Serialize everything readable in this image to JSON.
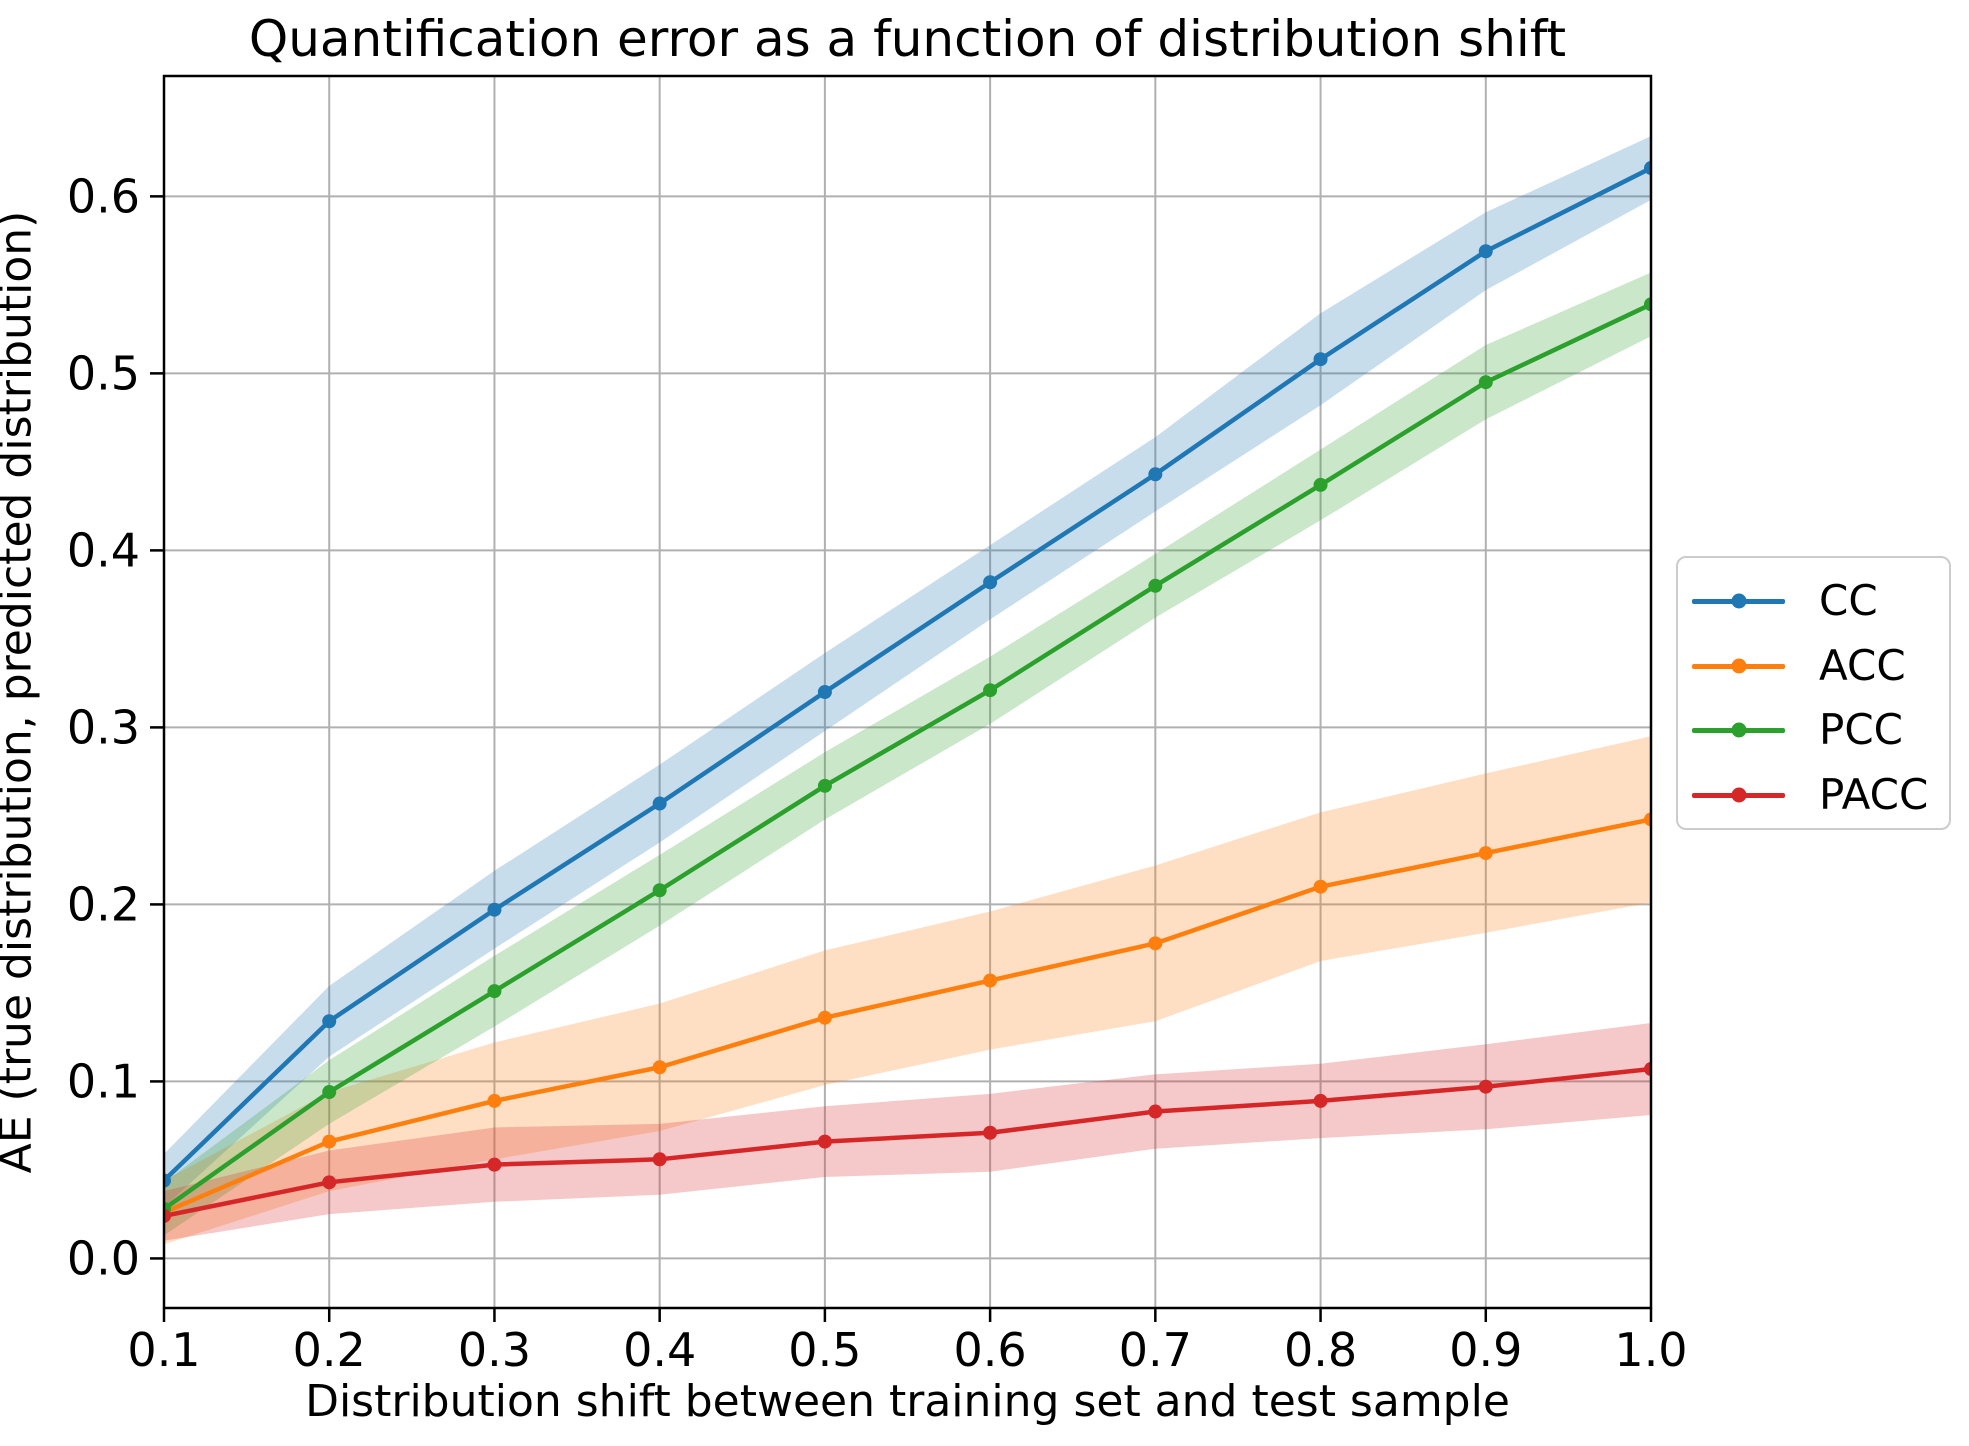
{
  "chart_data": {
    "type": "line",
    "title": "Quantification error as a function of distribution shift",
    "xlabel": "Distribution shift between training set and test sample",
    "ylabel": "AE (true distribution, predicted distribution)",
    "x": [
      0.1,
      0.2,
      0.3,
      0.4,
      0.5,
      0.6,
      0.7,
      0.8,
      0.9,
      1.0
    ],
    "xtick_labels": [
      "0.1",
      "0.2",
      "0.3",
      "0.4",
      "0.5",
      "0.6",
      "0.7",
      "0.8",
      "0.9",
      "1.0"
    ],
    "yticks": [
      0.0,
      0.1,
      0.2,
      0.3,
      0.4,
      0.5,
      0.6
    ],
    "ytick_labels": [
      "0.0",
      "0.1",
      "0.2",
      "0.3",
      "0.4",
      "0.5",
      "0.6"
    ],
    "xlim": [
      0.1,
      1.0
    ],
    "ylim": [
      -0.028,
      0.668
    ],
    "grid": true,
    "legend_position": "right of axes, vertically centered",
    "band_alpha": 0.25,
    "series": [
      {
        "name": "CC",
        "color": "#1f77b4",
        "values": [
          0.044,
          0.134,
          0.197,
          0.257,
          0.32,
          0.382,
          0.443,
          0.508,
          0.569,
          0.616
        ],
        "band_halfwidth": [
          0.015,
          0.02,
          0.022,
          0.022,
          0.022,
          0.021,
          0.021,
          0.026,
          0.022,
          0.018
        ]
      },
      {
        "name": "ACC",
        "color": "#ff7f0e",
        "values": [
          0.026,
          0.066,
          0.089,
          0.108,
          0.136,
          0.157,
          0.178,
          0.21,
          0.229,
          0.248
        ],
        "band_halfwidth": [
          0.018,
          0.028,
          0.033,
          0.036,
          0.038,
          0.039,
          0.044,
          0.042,
          0.045,
          0.047
        ]
      },
      {
        "name": "PCC",
        "color": "#2ca02c",
        "values": [
          0.028,
          0.094,
          0.151,
          0.208,
          0.267,
          0.321,
          0.38,
          0.437,
          0.495,
          0.539
        ],
        "band_halfwidth": [
          0.015,
          0.018,
          0.02,
          0.02,
          0.019,
          0.019,
          0.018,
          0.02,
          0.021,
          0.018
        ]
      },
      {
        "name": "PACC",
        "color": "#d62728",
        "values": [
          0.024,
          0.043,
          0.053,
          0.056,
          0.066,
          0.071,
          0.083,
          0.089,
          0.097,
          0.107
        ],
        "band_halfwidth": [
          0.014,
          0.018,
          0.021,
          0.02,
          0.02,
          0.022,
          0.021,
          0.021,
          0.024,
          0.026
        ]
      }
    ],
    "colors": {
      "grid": "#b0b0b0",
      "spine": "#000000",
      "background": "#ffffff",
      "legend_border": "#cccccc",
      "text": "#000000"
    }
  }
}
